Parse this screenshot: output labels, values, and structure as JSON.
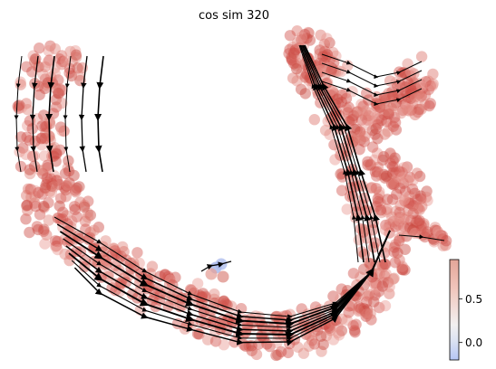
{
  "chart_data": {
    "type": "scatter",
    "title": "cos sim 320",
    "xlabel": "",
    "ylabel": "",
    "grid": false,
    "axes_visible": false,
    "overlay": "velocity stream lines (black arrows)",
    "colormap": {
      "name": "coolwarm",
      "low_color": "#3b4cc0",
      "mid_color": "#dddddd",
      "high_color": "#b40426",
      "range": [
        -0.2,
        0.95
      ]
    },
    "colorbar": {
      "placement": "right-bottom",
      "ticks": [
        0.0,
        0.5
      ],
      "tick_labels": [
        "0.0",
        "0.5"
      ]
    }
  }
}
